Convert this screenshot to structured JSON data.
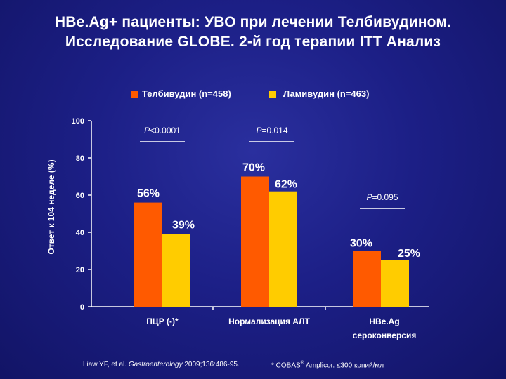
{
  "title_line1": "HBe.Ag+ пациенты: УВО при лечении Телбивудином.",
  "title_line2": "Исследование GLOBE. 2-й год терапии ITT Анализ",
  "colors": {
    "telbivudine": "#ff5a00",
    "lamivudine": "#ffcc00",
    "axis": "#ffffff"
  },
  "chart_data": {
    "type": "bar",
    "ylabel": "Ответ к 104 неделе (%)",
    "ylim": [
      0,
      100
    ],
    "yticks": [
      "0",
      "20",
      "40",
      "60",
      "80",
      "100"
    ],
    "categories": [
      "ПЦР (-)*",
      "Нормализация АЛТ",
      "HBe.Ag сероконверсия"
    ],
    "category_lines": [
      [
        "ПЦР (-)*"
      ],
      [
        "Нормализация АЛТ"
      ],
      [
        "HBe.Ag",
        "сероконверсия"
      ]
    ],
    "series": [
      {
        "name": "Телбивудин (n=458)",
        "values": [
          56,
          70,
          30
        ],
        "labels": [
          "56%",
          "70%",
          "30%"
        ]
      },
      {
        "name": "Ламивудин (n=463)",
        "values": [
          39,
          62,
          25
        ],
        "labels": [
          "39%",
          "62%",
          "25%"
        ]
      }
    ],
    "p_values": [
      {
        "prefix": "P",
        "text": "<0.0001"
      },
      {
        "prefix": "P",
        "text": "=0.014"
      },
      {
        "prefix": "P",
        "text": "=0.095"
      }
    ]
  },
  "footer": {
    "citation_authors": "Liaw YF, et al. ",
    "citation_journal": "Gastroenterology",
    "citation_rest": " 2009;136:486-95.",
    "note_prefix": "* COBAS",
    "note_sup": "®",
    "note_rest": " Amplicor. ≤300 копий/мл"
  }
}
